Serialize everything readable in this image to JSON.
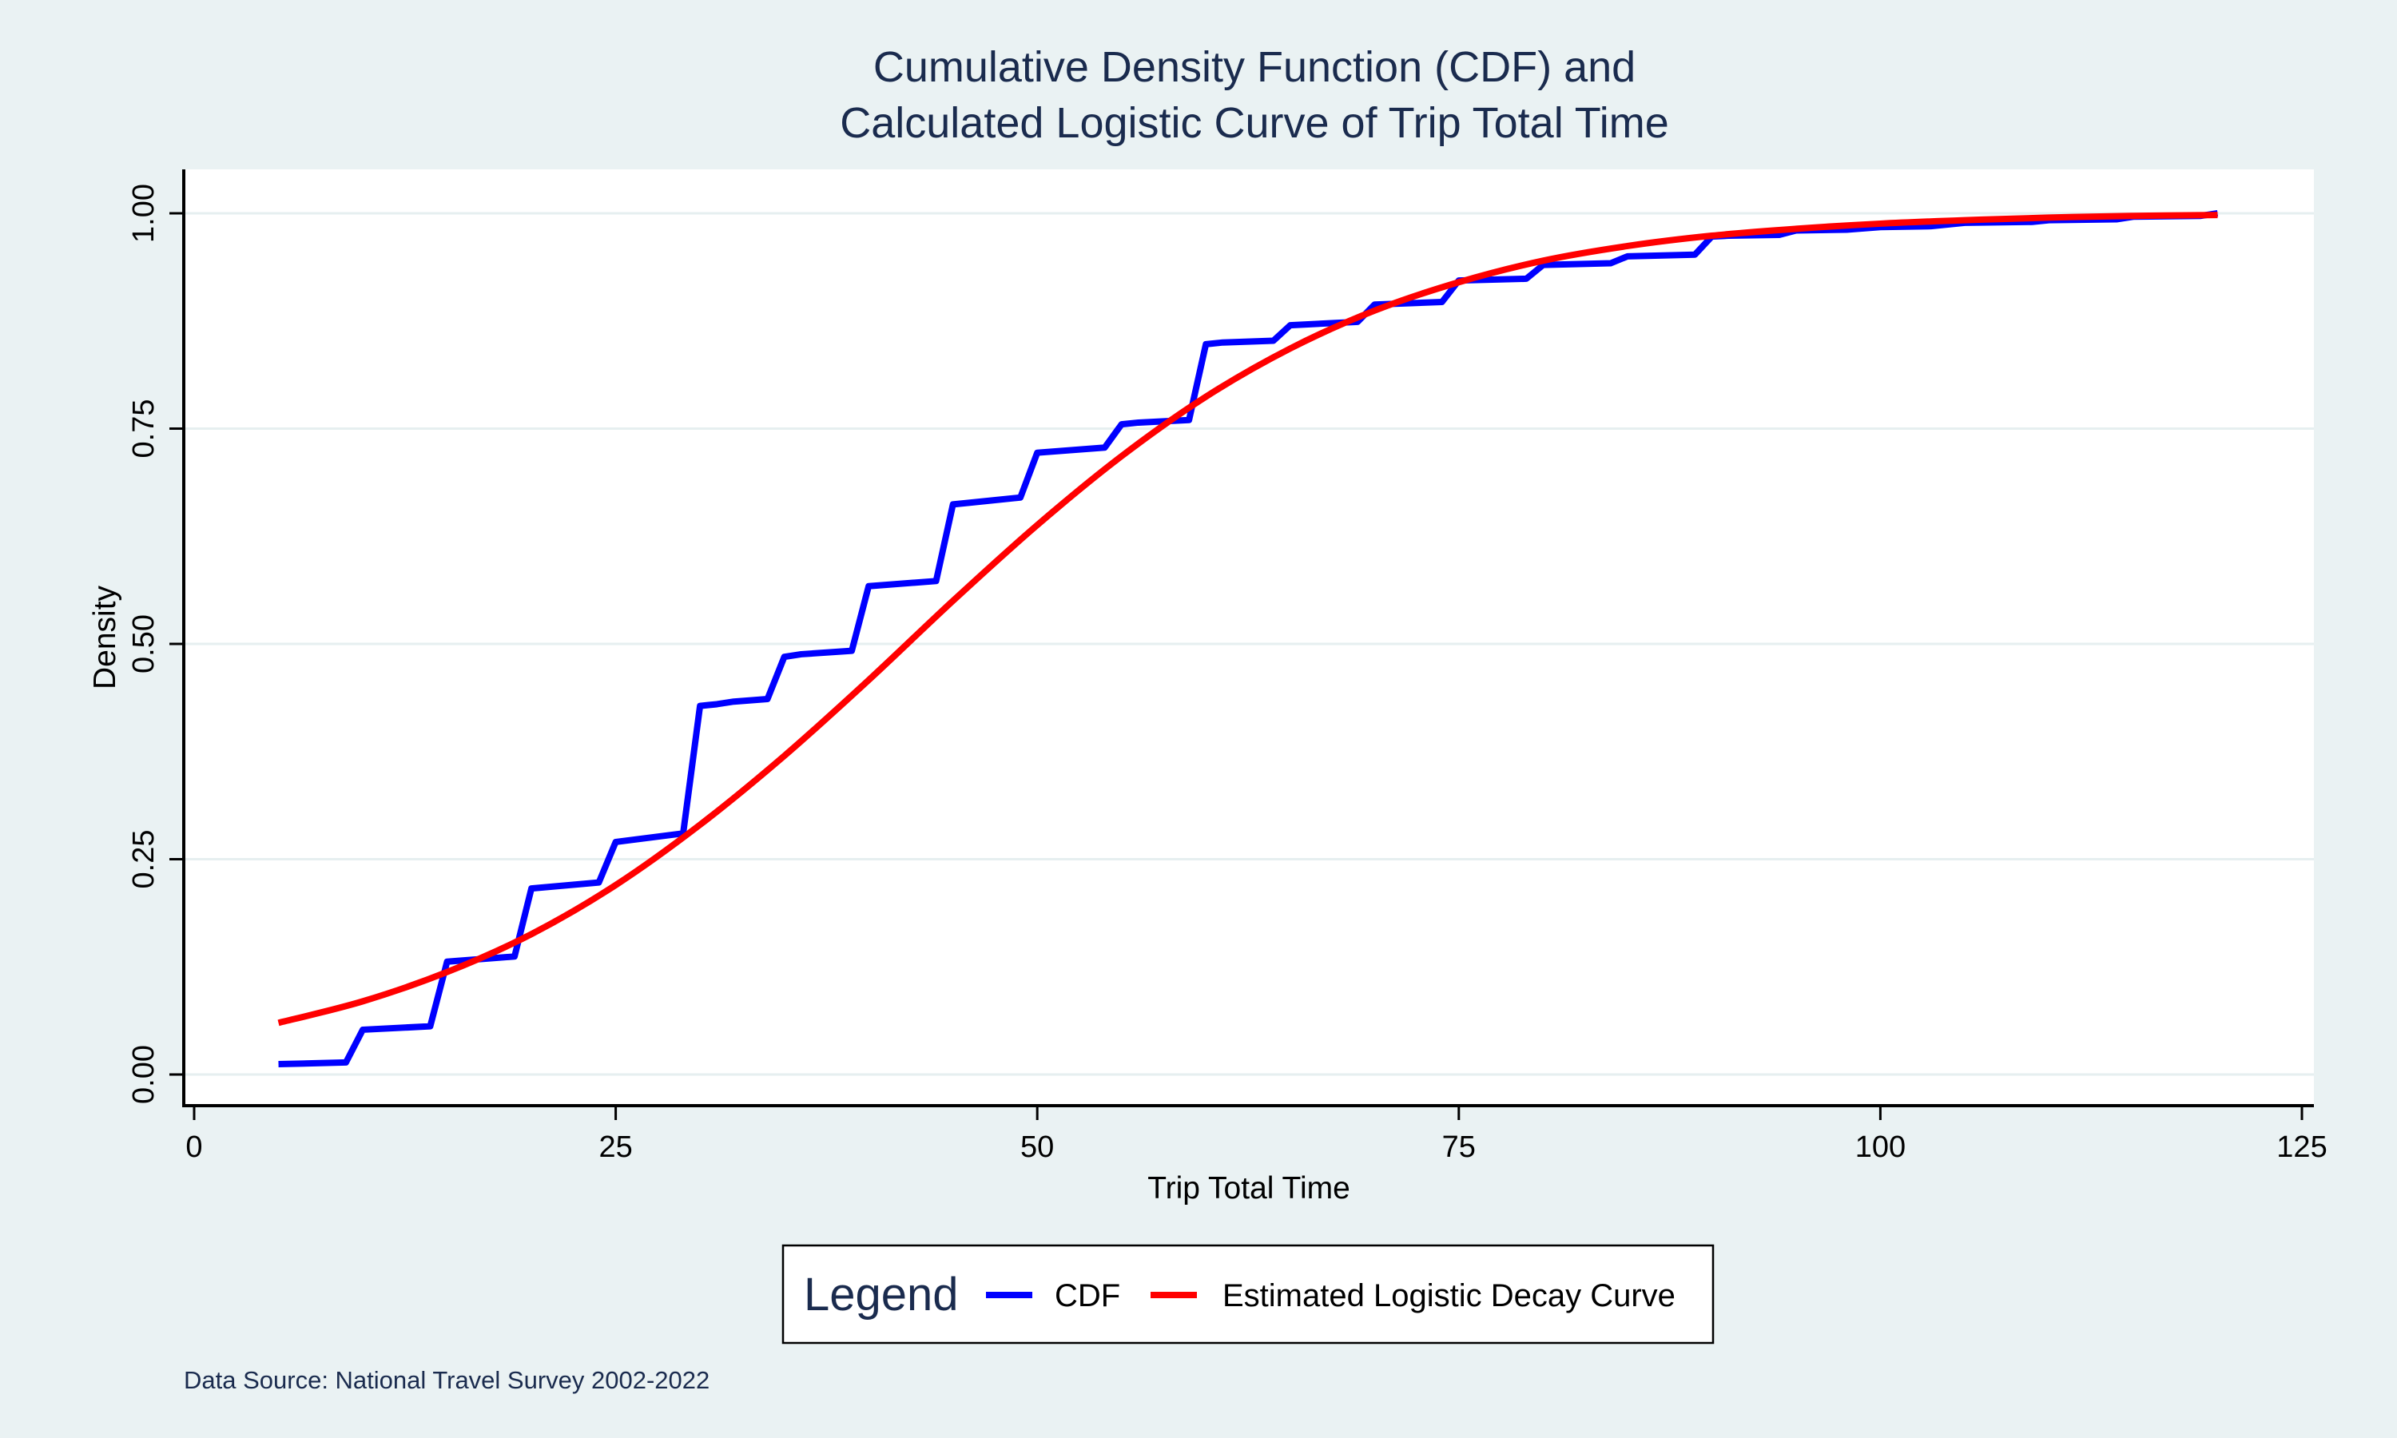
{
  "chart_data": {
    "type": "line",
    "title_lines": [
      "Cumulative Density Function (CDF) and",
      "Calculated Logistic Curve of Trip Total Time"
    ],
    "xlabel": "Trip Total Time",
    "ylabel": "Density",
    "xlim": [
      0,
      125
    ],
    "ylim": [
      0,
      1
    ],
    "x_ticks": [
      0,
      25,
      50,
      75,
      100,
      125
    ],
    "x_tick_labels": [
      "0",
      "25",
      "50",
      "75",
      "100",
      "125"
    ],
    "y_ticks": [
      0,
      0.25,
      0.5,
      0.75,
      1
    ],
    "y_tick_labels": [
      "0.00",
      "0.25",
      "0.50",
      "0.75",
      "1.00"
    ],
    "grid": "horizontal",
    "legend": {
      "title": "Legend",
      "position": "bottom-center",
      "entries": [
        "CDF",
        "Estimated Logistic Decay Curve"
      ]
    },
    "note": "Data Source: National Travel Survey 2002-2022",
    "series": [
      {
        "name": "CDF",
        "color": "#0000ff",
        "x": [
          5,
          9,
          10,
          14,
          15,
          19,
          20,
          24,
          25,
          29,
          30,
          31,
          32,
          34,
          35,
          36,
          39,
          40,
          44,
          45,
          46,
          49,
          50,
          54,
          55,
          56,
          59,
          60,
          61,
          64,
          65,
          69,
          70,
          74,
          75,
          79,
          80,
          84,
          85,
          89,
          90,
          91,
          94,
          95,
          98,
          100,
          103,
          105,
          109,
          110,
          114,
          115,
          119,
          120
        ],
        "y": [
          0.012,
          0.014,
          0.052,
          0.056,
          0.131,
          0.137,
          0.216,
          0.223,
          0.27,
          0.28,
          0.428,
          0.43,
          0.433,
          0.436,
          0.485,
          0.488,
          0.492,
          0.567,
          0.573,
          0.662,
          0.664,
          0.67,
          0.722,
          0.728,
          0.755,
          0.757,
          0.76,
          0.848,
          0.85,
          0.852,
          0.87,
          0.874,
          0.894,
          0.897,
          0.922,
          0.924,
          0.94,
          0.942,
          0.95,
          0.952,
          0.973,
          0.974,
          0.975,
          0.98,
          0.981,
          0.984,
          0.985,
          0.989,
          0.99,
          0.992,
          0.993,
          0.996,
          0.997,
          1.0
        ]
      },
      {
        "name": "Estimated Logistic Decay Curve",
        "color": "#ff0000",
        "x": [
          5,
          10,
          15,
          20,
          25,
          30,
          35,
          40,
          45,
          50,
          55,
          60,
          65,
          70,
          75,
          80,
          85,
          90,
          95,
          100,
          105,
          110,
          115,
          120
        ],
        "y": [
          0.06,
          0.085,
          0.119,
          0.163,
          0.22,
          0.29,
          0.37,
          0.458,
          0.55,
          0.638,
          0.718,
          0.787,
          0.843,
          0.887,
          0.92,
          0.945,
          0.962,
          0.974,
          0.982,
          0.988,
          0.992,
          0.995,
          0.997,
          0.998
        ]
      }
    ]
  }
}
